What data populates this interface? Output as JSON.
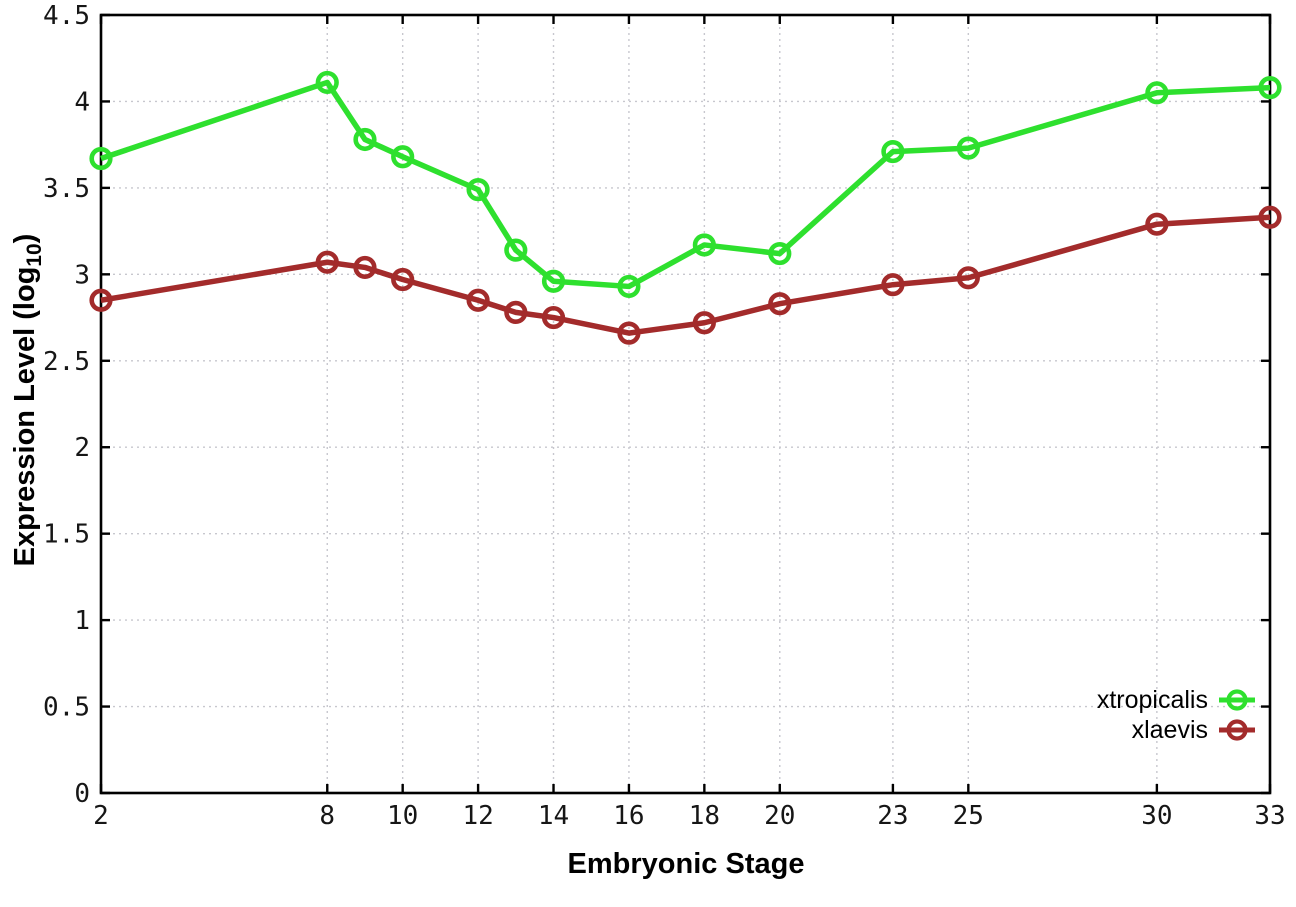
{
  "chart_data": {
    "type": "line",
    "title": "",
    "xlabel": "Embryonic Stage",
    "ylabel": "Expression Level (log10)",
    "ylabel_main": "Expression Level (log",
    "ylabel_sub": "10",
    "ylabel_suffix": ")",
    "x": [
      2,
      8,
      9,
      10,
      12,
      13,
      14,
      16,
      18,
      20,
      23,
      25,
      30,
      33
    ],
    "series": [
      {
        "name": "xtropicalis",
        "color": "#2ee02e",
        "marker": "open-circle",
        "values": [
          3.67,
          4.11,
          3.78,
          3.68,
          3.49,
          3.14,
          2.96,
          2.93,
          3.17,
          3.12,
          3.71,
          3.73,
          4.05,
          4.08
        ]
      },
      {
        "name": "xlaevis",
        "color": "#a32b2b",
        "marker": "open-circle",
        "values": [
          2.85,
          3.07,
          3.04,
          2.97,
          2.85,
          2.78,
          2.75,
          2.66,
          2.72,
          2.83,
          2.94,
          2.98,
          3.29,
          3.33
        ]
      }
    ],
    "xlim": [
      2,
      33
    ],
    "ylim": [
      0,
      4.5
    ],
    "xticks": [
      2,
      8,
      10,
      12,
      14,
      16,
      18,
      20,
      23,
      25,
      30,
      33
    ],
    "xtick_labels": [
      "2",
      "8",
      "10",
      "12",
      "14",
      "16",
      "18",
      "20",
      "23",
      "25",
      "30",
      "33"
    ],
    "yticks": [
      0,
      0.5,
      1,
      1.5,
      2,
      2.5,
      3,
      3.5,
      4,
      4.5
    ],
    "ytick_labels": [
      "0",
      "0.5",
      "1",
      "1.5",
      "2",
      "2.5",
      "3",
      "3.5",
      "4",
      "4.5"
    ],
    "grid": true,
    "grid_style": "dotted",
    "legend_position": "inside-bottom-right",
    "background_color": "#ffffff",
    "border_color": "#000000"
  }
}
